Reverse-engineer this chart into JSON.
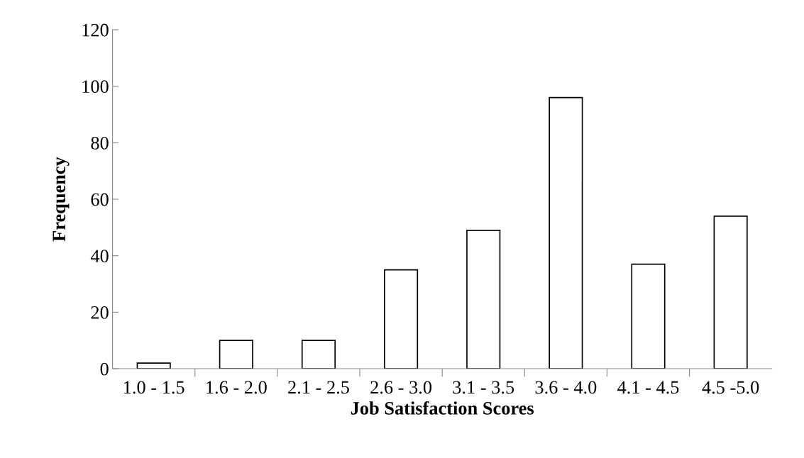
{
  "chart_data": {
    "type": "bar",
    "xlabel": "Job Satisfaction Scores",
    "ylabel": "Frequency",
    "categories": [
      "1.0 - 1.5",
      "1.6 - 2.0",
      "2.1 - 2.5",
      "2.6 - 3.0",
      "3.1 - 3.5",
      "3.6 - 4.0",
      "4.1 - 4.5",
      "4.5 -5.0"
    ],
    "values": [
      2,
      10,
      10,
      35,
      49,
      96,
      37,
      54
    ],
    "color": "#ffffff",
    "ylim": [
      0,
      120
    ],
    "yticks": [
      0,
      20,
      40,
      60,
      80,
      100,
      120
    ],
    "grid": false,
    "legend": false
  }
}
